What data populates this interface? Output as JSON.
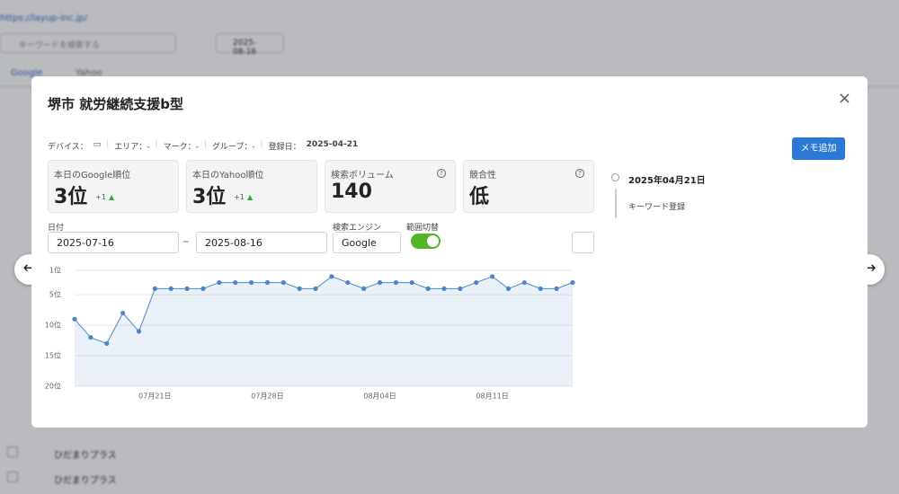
{
  "background": {
    "url": "https://layup-inc.jp/",
    "search_placeholder": "キーワードを検索する",
    "date": "2025-08-16",
    "tabs": [
      "Google",
      "Yahoo"
    ],
    "rows": [
      "ひだまりプラス",
      "ひだまりプラス"
    ]
  },
  "modal": {
    "title": "堺市 就労継続支援b型",
    "meta": {
      "device_label": "デバイス：",
      "area": "エリア：-",
      "mark": "マーク：-",
      "group": "グループ：-",
      "registered_label": "登録日：",
      "registered_date": "2025-04-21"
    },
    "memo_button": "メモ追加",
    "cards": [
      {
        "label": "本日のGoogle順位",
        "value": "3位",
        "change": "+1"
      },
      {
        "label": "本日のYahoo順位",
        "value": "3位",
        "change": "+1"
      },
      {
        "label": "検索ボリューム",
        "value": "140"
      },
      {
        "label": "競合性",
        "value": "低"
      }
    ],
    "filters": {
      "date_label": "日付",
      "start": "2025-07-16",
      "sep": "~",
      "end": "2025-08-16",
      "engine_label": "検索エンジン",
      "engine": "Google",
      "range_label": "範囲切替"
    },
    "timeline": [
      {
        "date": "2025年04月21日",
        "text": "キーワード登録"
      }
    ]
  },
  "chart_data": {
    "type": "line",
    "color": "#4a86c8",
    "area": true,
    "y_reversed": true,
    "grid": true,
    "categories": [
      null,
      null,
      null,
      null,
      null,
      "07月21日",
      null,
      null,
      null,
      null,
      null,
      null,
      "07月28日",
      null,
      null,
      null,
      null,
      null,
      null,
      "08月04日",
      null,
      null,
      null,
      null,
      null,
      null,
      "08月11日",
      null,
      null,
      null,
      null,
      null
    ],
    "values": [
      9,
      12,
      13,
      8,
      11,
      4,
      4,
      4,
      4,
      3,
      3,
      3,
      3,
      3,
      4,
      4,
      2,
      3,
      4,
      3,
      3,
      3,
      4,
      4,
      4,
      3,
      2,
      4,
      3,
      4,
      4,
      3
    ],
    "ylim": [
      1,
      20
    ],
    "yticks": [
      {
        "value": 1,
        "label": "1位"
      },
      {
        "value": 5,
        "label": "5位"
      },
      {
        "value": 10,
        "label": "10位"
      },
      {
        "value": 15,
        "label": "15位"
      },
      {
        "value": 20,
        "label": "20位"
      }
    ]
  }
}
